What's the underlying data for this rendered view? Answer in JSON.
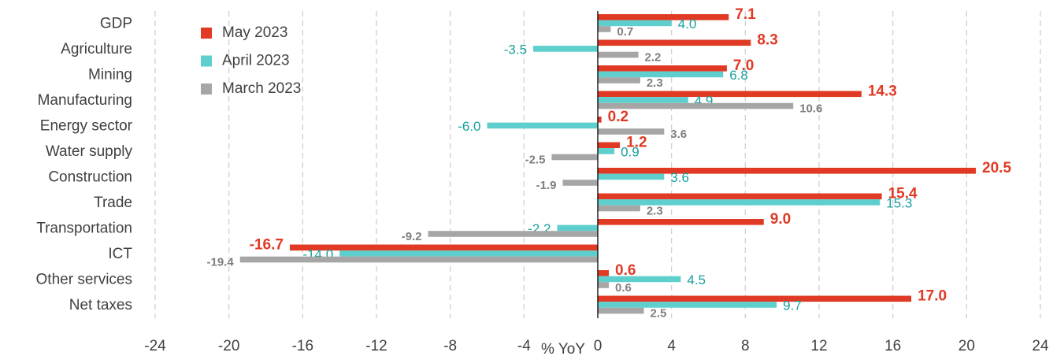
{
  "chart_data": {
    "type": "bar",
    "orientation": "horizontal",
    "categories": [
      "GDP",
      "Agriculture",
      "Mining",
      "Manufacturing",
      "Energy sector",
      "Water supply",
      "Construction",
      "Trade",
      "Transportation",
      "ICT",
      "Other services",
      "Net taxes"
    ],
    "series": [
      {
        "name": "May 2023",
        "color": "#e03a24",
        "values": [
          7.1,
          8.3,
          7.0,
          14.3,
          0.2,
          1.2,
          20.5,
          15.4,
          9.0,
          -16.7,
          0.6,
          17.0
        ],
        "value_labels": [
          "7.1",
          "8.3",
          "7.0",
          "14.3",
          "0.2",
          "1.2",
          "20.5",
          "15.4",
          "9.0",
          "-16.7",
          "0.6",
          "17.0"
        ]
      },
      {
        "name": "April 2023",
        "color": "#5ecfcd",
        "values": [
          4.0,
          -3.5,
          6.8,
          4.9,
          -6.0,
          0.9,
          3.6,
          15.3,
          -2.2,
          -14.0,
          4.5,
          9.7
        ],
        "value_labels": [
          "4.0",
          "-3.5",
          "6.8",
          "4.9",
          "-6.0",
          "0.9",
          "3.6",
          "15.3",
          "-2.2",
          "-14.0",
          "4.5",
          "9.7"
        ]
      },
      {
        "name": "March 2023",
        "color": "#a6a6a6",
        "values": [
          0.7,
          2.2,
          2.3,
          10.6,
          3.6,
          -2.5,
          -1.9,
          2.3,
          -9.2,
          -19.4,
          0.6,
          2.5
        ],
        "value_labels": [
          "0.7",
          "2.2",
          "2.3",
          "10.6",
          "3.6",
          "-2.5",
          "-1.9",
          "2.3",
          "-9.2",
          "-19.4",
          "0.6",
          "2.5"
        ]
      }
    ],
    "x_label": "% YoY",
    "xlim": [
      -24,
      24
    ],
    "xticks": [
      -24,
      -20,
      -16,
      -12,
      -8,
      -4,
      0,
      4,
      8,
      12,
      16,
      20,
      24
    ],
    "grid": true,
    "legend": "upper left"
  }
}
